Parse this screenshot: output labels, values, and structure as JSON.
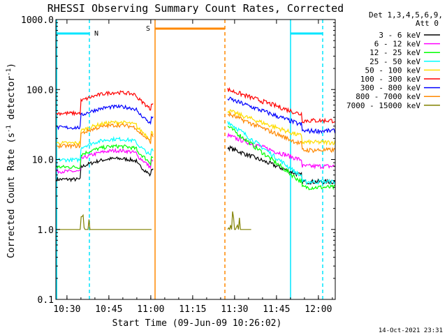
{
  "chart_data": {
    "type": "line",
    "title": "RHESSI Observing Summary Count Rates, Corrected",
    "xlabel": "Start Time (09-Jun-09 10:26:02)",
    "ylabel_main": "Corrected Count Rate (s",
    "ylabel_exp": "-1",
    "ylabel_mid": " detector",
    "ylabel_exp2": "-1",
    "ylabel_end": ")",
    "yscale": "log",
    "ylim": [
      0.1,
      1000
    ],
    "xlim_minutes": [
      0,
      100
    ],
    "x_ticks": [
      {
        "label": "10:30",
        "t": 3.97
      },
      {
        "label": "10:45",
        "t": 18.97
      },
      {
        "label": "11:00",
        "t": 33.97
      },
      {
        "label": "11:15",
        "t": 48.97
      },
      {
        "label": "11:30",
        "t": 63.97
      },
      {
        "label": "11:45",
        "t": 78.97
      },
      {
        "label": "12:00",
        "t": 93.97
      }
    ],
    "y_ticks": [
      {
        "label": "1000.0",
        "v": 1000
      },
      {
        "label": "100.0",
        "v": 100
      },
      {
        "label": "10.0",
        "v": 10
      },
      {
        "label": "1.0",
        "v": 1
      },
      {
        "label": "0.1",
        "v": 0.1
      }
    ],
    "legend_header": [
      "Det 1,3,4,5,6,9,",
      "Att 0"
    ],
    "series": [
      {
        "name": "3 - 6 keV",
        "color": "#000000",
        "base": 10,
        "pre_scale": 1.0,
        "post_start": 15,
        "post_end": 6
      },
      {
        "name": "6 - 12 keV",
        "color": "#ff00ff",
        "base": 13,
        "pre_scale": 1.0,
        "post_start": 22,
        "post_end": 10
      },
      {
        "name": "12 - 25 keV",
        "color": "#00ff00",
        "base": 15,
        "pre_scale": 1.0,
        "post_start": 30,
        "post_end": 5
      },
      {
        "name": "25 - 50 keV",
        "color": "#00ffff",
        "base": 19,
        "pre_scale": 1.0,
        "post_start": 35,
        "post_end": 6
      },
      {
        "name": "50 - 100 keV",
        "color": "#ffdd00",
        "base": 33,
        "pre_scale": 1.0,
        "post_start": 50,
        "post_end": 22
      },
      {
        "name": "100 - 300 keV",
        "color": "#ff0000",
        "base": 88,
        "pre_scale": 1.0,
        "post_start": 100,
        "post_end": 45
      },
      {
        "name": "300 - 800 keV",
        "color": "#0000ff",
        "base": 55,
        "pre_scale": 1.0,
        "post_start": 75,
        "post_end": 32
      },
      {
        "name": "800 - 7000 keV",
        "color": "#ff8800",
        "base": 30,
        "pre_scale": 1.0,
        "post_start": 45,
        "post_end": 17
      },
      {
        "name": "7000 - 15000 keV",
        "color": "#808000",
        "base": 1,
        "pre_scale": 1.0,
        "post_start": 1,
        "post_end": 1
      }
    ],
    "night_marker": {
      "label": "N",
      "color": "#00e5ff"
    },
    "saa_marker": {
      "label": "S",
      "color": "#ff8800"
    },
    "timestamp": "14-Oct-2021 23:31"
  }
}
